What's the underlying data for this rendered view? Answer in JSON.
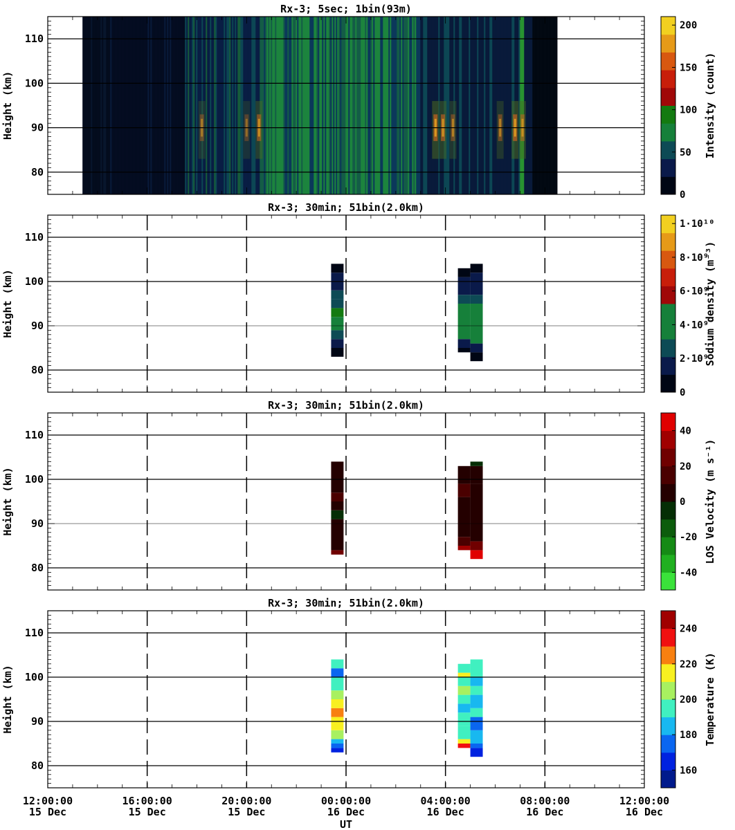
{
  "figure": {
    "xlabel": "UT",
    "x_ticks": [
      {
        "time": "12:00:00",
        "date": "15 Dec"
      },
      {
        "time": "16:00:00",
        "date": "15 Dec"
      },
      {
        "time": "20:00:00",
        "date": "15 Dec"
      },
      {
        "time": "00:00:00",
        "date": "16 Dec"
      },
      {
        "time": "04:00:00",
        "date": "16 Dec"
      },
      {
        "time": "08:00:00",
        "date": "16 Dec"
      },
      {
        "time": "12:00:00",
        "date": "16 Dec"
      }
    ]
  },
  "chart_data": [
    {
      "type": "heatmap",
      "title": "Rx-3;  5sec; 1bin(93m)",
      "ylabel": "Height (km)",
      "xlim": [
        "15 Dec 12:00:00",
        "16 Dec 12:00:00"
      ],
      "ylim": [
        75,
        115
      ],
      "y_ticks": [
        80,
        90,
        100,
        110
      ],
      "colorbar": {
        "label": "Intensity (count)",
        "range": [
          0,
          210
        ],
        "ticks": [
          "0",
          "50",
          "100",
          "150",
          "200"
        ],
        "colors": [
          "#000614",
          "#0a1a4a",
          "#0d4a55",
          "#16803a",
          "#137a10",
          "#a00808",
          "#c81e0a",
          "#d85810",
          "#e69a18",
          "#f2d020"
        ]
      },
      "data_extent_hours": [
        13.4,
        32.5
      ],
      "band_times_hours": [
        {
          "t": 18.2,
          "i": 0.55
        },
        {
          "t": 20.0,
          "i": 0.45
        },
        {
          "t": 20.5,
          "i": 0.75
        },
        {
          "t": 27.6,
          "i": 0.9
        },
        {
          "t": 27.9,
          "i": 0.8
        },
        {
          "t": 28.3,
          "i": 0.6
        },
        {
          "t": 30.2,
          "i": 0.6
        },
        {
          "t": 30.8,
          "i": 0.9
        },
        {
          "t": 31.1,
          "i": 0.7
        }
      ]
    },
    {
      "type": "heatmap",
      "title": "Rx-3; 30min; 51bin(2.0km)",
      "ylabel": "Height (km)",
      "xlim": [
        "15 Dec 12:00:00",
        "16 Dec 12:00:00"
      ],
      "ylim": [
        75,
        115
      ],
      "y_ticks": [
        80,
        90,
        100,
        110
      ],
      "colorbar": {
        "label": "Sodium density (m⁻³)",
        "range": [
          0,
          10500000000.0
        ],
        "ticks": [
          "0",
          "2·10⁹",
          "4·10⁹",
          "6·10⁹",
          "8·10⁹",
          "1·10¹⁰"
        ],
        "colors": [
          "#000614",
          "#0a1a4a",
          "#0d4a55",
          "#16803a",
          "#16803a",
          "#a00808",
          "#c81e0a",
          "#d85810",
          "#e69a18",
          "#f2d020"
        ]
      },
      "columns": [
        {
          "t0": 23.4,
          "t1": 23.9,
          "cells": [
            [
              83,
              85,
              "#000614"
            ],
            [
              85,
              87,
              "#0a1a4a"
            ],
            [
              87,
              89,
              "#0d4a55"
            ],
            [
              89,
              92,
              "#16803a"
            ],
            [
              92,
              94,
              "#137a10"
            ],
            [
              94,
              96,
              "#0d4a55"
            ],
            [
              96,
              98,
              "#0d4a55"
            ],
            [
              98,
              102,
              "#0a1a4a"
            ],
            [
              102,
              104,
              "#000614"
            ]
          ]
        },
        {
          "t0": 24.5,
          "t1": 25.0,
          "cells": []
        },
        {
          "t0": 28.5,
          "t1": 29.0,
          "cells": [
            [
              84,
              85,
              "#000614"
            ],
            [
              85,
              87,
              "#0a1a4a"
            ],
            [
              87,
              95,
              "#16803a"
            ],
            [
              95,
              97,
              "#0d4a55"
            ],
            [
              97,
              101,
              "#0a1a4a"
            ],
            [
              101,
              103,
              "#000614"
            ]
          ]
        },
        {
          "t0": 29.0,
          "t1": 29.5,
          "cells": [
            [
              82,
              84,
              "#000614"
            ],
            [
              84,
              86,
              "#0a1a4a"
            ],
            [
              86,
              95,
              "#16803a"
            ],
            [
              95,
              97,
              "#0d4a55"
            ],
            [
              97,
              102,
              "#0a1a4a"
            ],
            [
              102,
              104,
              "#000614"
            ]
          ]
        }
      ]
    },
    {
      "type": "heatmap",
      "title": "Rx-3; 30min; 51bin(2.0km)",
      "ylabel": "Height (km)",
      "xlim": [
        "15 Dec 12:00:00",
        "16 Dec 12:00:00"
      ],
      "ylim": [
        75,
        115
      ],
      "y_ticks": [
        80,
        90,
        100,
        110
      ],
      "colorbar": {
        "label": "LOS Velocity (m s⁻¹)",
        "range": [
          -50,
          50
        ],
        "ticks": [
          "-40",
          "-20",
          "0",
          "20",
          "40"
        ],
        "colors": [
          "#3ae23a",
          "#20b020",
          "#158a15",
          "#0c5c0c",
          "#052e05",
          "#240000",
          "#4a0000",
          "#700000",
          "#a00000",
          "#e00000"
        ]
      },
      "columns": [
        {
          "t0": 23.4,
          "t1": 23.9,
          "cells": [
            [
              83,
              84,
              "#700000"
            ],
            [
              84,
              91,
              "#240000"
            ],
            [
              91,
              93,
              "#052e05"
            ],
            [
              93,
              95,
              "#240000"
            ],
            [
              95,
              97,
              "#4a0000"
            ],
            [
              97,
              104,
              "#240000"
            ]
          ]
        },
        {
          "t0": 28.5,
          "t1": 29.0,
          "cells": [
            [
              84,
              85,
              "#a00000"
            ],
            [
              85,
              87,
              "#4a0000"
            ],
            [
              87,
              96,
              "#240000"
            ],
            [
              96,
              99,
              "#4a0000"
            ],
            [
              99,
              103,
              "#240000"
            ]
          ]
        },
        {
          "t0": 29.0,
          "t1": 29.5,
          "cells": [
            [
              82,
              84,
              "#e00000"
            ],
            [
              84,
              86,
              "#700000"
            ],
            [
              86,
              99,
              "#240000"
            ],
            [
              99,
              103,
              "#240000"
            ],
            [
              103,
              104,
              "#052e05"
            ]
          ]
        }
      ]
    },
    {
      "type": "heatmap",
      "title": "Rx-3; 30min; 51bin(2.0km)",
      "ylabel": "Height (km)",
      "xlim": [
        "15 Dec 12:00:00",
        "16 Dec 12:00:00"
      ],
      "ylim": [
        75,
        115
      ],
      "y_ticks": [
        80,
        90,
        100,
        110
      ],
      "colorbar": {
        "label": "Temperature (K)",
        "range": [
          150,
          250
        ],
        "ticks": [
          "160",
          "180",
          "200",
          "220",
          "240"
        ],
        "colors": [
          "#001a8c",
          "#0022e0",
          "#0a66f0",
          "#18b8f0",
          "#40f0c0",
          "#a8f060",
          "#f8f020",
          "#f88010",
          "#f01010",
          "#a00000"
        ]
      },
      "columns": [
        {
          "t0": 23.4,
          "t1": 23.9,
          "cells": [
            [
              83,
              84,
              "#0022e0"
            ],
            [
              84,
              85,
              "#0a66f0"
            ],
            [
              85,
              86,
              "#18b8f0"
            ],
            [
              86,
              88,
              "#a8f060"
            ],
            [
              88,
              91,
              "#f8f020"
            ],
            [
              91,
              93,
              "#f88010"
            ],
            [
              93,
              95,
              "#f8f020"
            ],
            [
              95,
              97,
              "#a8f060"
            ],
            [
              97,
              100,
              "#40f0c0"
            ],
            [
              100,
              102,
              "#0a66f0"
            ],
            [
              102,
              104,
              "#40f0c0"
            ]
          ]
        },
        {
          "t0": 28.5,
          "t1": 29.0,
          "cells": [
            [
              84,
              85,
              "#f01010"
            ],
            [
              85,
              86,
              "#f8f020"
            ],
            [
              86,
              89,
              "#40f0c0"
            ],
            [
              89,
              92,
              "#40f0c0"
            ],
            [
              92,
              94,
              "#18b8f0"
            ],
            [
              94,
              96,
              "#40f0c0"
            ],
            [
              96,
              98,
              "#a8f060"
            ],
            [
              98,
              100,
              "#40f0c0"
            ],
            [
              100,
              101,
              "#f8f020"
            ],
            [
              101,
              103,
              "#40f0c0"
            ]
          ]
        },
        {
          "t0": 29.0,
          "t1": 29.5,
          "cells": [
            [
              82,
              84,
              "#0022e0"
            ],
            [
              84,
              85,
              "#0a66f0"
            ],
            [
              85,
              88,
              "#18b8f0"
            ],
            [
              88,
              91,
              "#0a66f0"
            ],
            [
              91,
              93,
              "#40f0c0"
            ],
            [
              93,
              96,
              "#18b8f0"
            ],
            [
              96,
              98,
              "#40f0c0"
            ],
            [
              98,
              100,
              "#18b8f0"
            ],
            [
              100,
              104,
              "#40f0c0"
            ]
          ]
        }
      ]
    }
  ]
}
